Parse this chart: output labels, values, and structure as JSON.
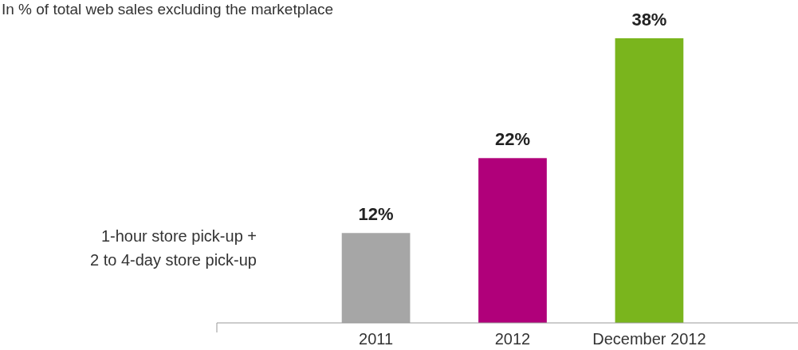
{
  "chart_data": {
    "type": "bar",
    "title": "In % of total web sales excluding the marketplace",
    "categories": [
      "2011",
      "2012",
      "December 2012"
    ],
    "values": [
      12,
      22,
      38
    ],
    "colors": [
      "#a6a6a6",
      "#b0007a",
      "#7ab51d"
    ],
    "value_labels": [
      "12%",
      "22%",
      "38%"
    ],
    "annotations": [
      "1-hour store pick-up +\n2 to 4-day store pick-up"
    ]
  }
}
